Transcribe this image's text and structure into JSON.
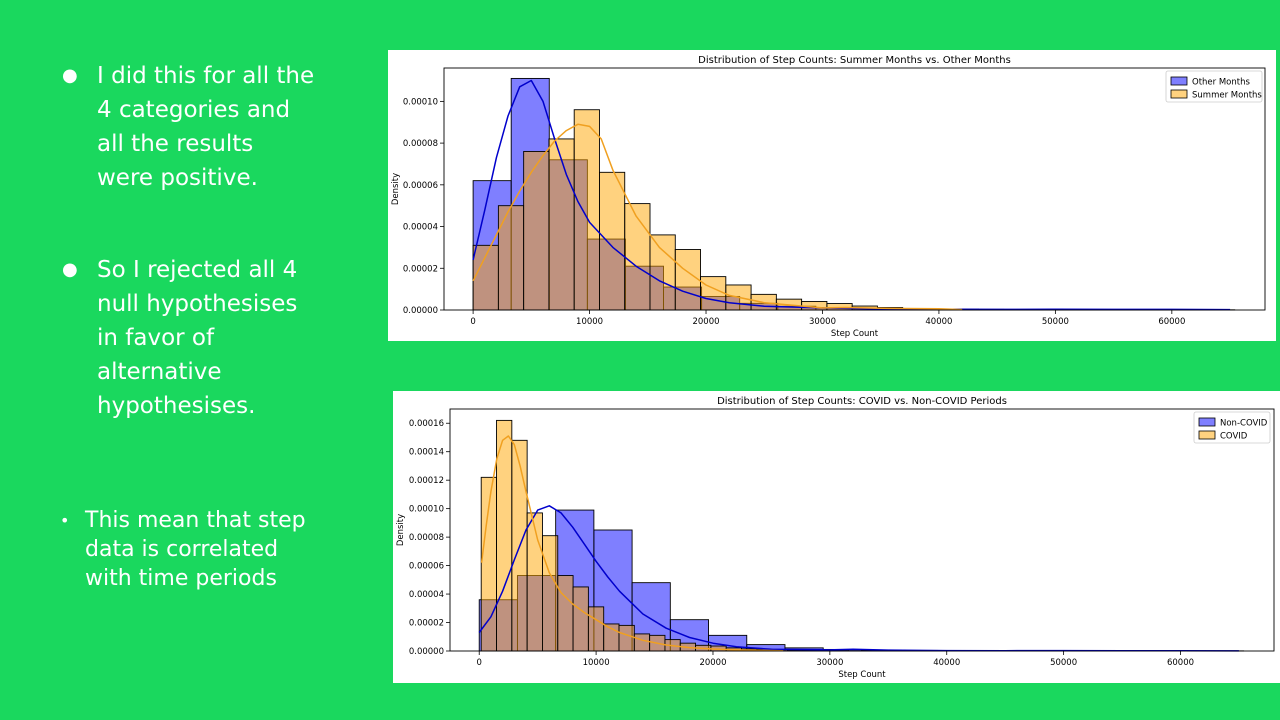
{
  "bullets": [
    {
      "text": "I did this for all the\n4 categories and\nall the results\nwere positive."
    },
    {
      "text": "So I rejected all 4\nnull hypothesises\nin favor of\nalternative\nhypothesises."
    },
    {
      "text": "This mean that step\ndata is correlated\nwith time periods"
    }
  ],
  "colors": {
    "background": "#1ad85e",
    "series_blue": "#0000ff",
    "series_orange": "#ffa500",
    "kde_blue": "#0000cc",
    "kde_orange": "#f0a020"
  },
  "chart_data": [
    {
      "type": "bar",
      "subtype": "histogram-with-kde",
      "title": "Distribution of Step Counts: Summer Months vs. Other Months",
      "xlabel": "Step Count",
      "ylabel": "Density",
      "xlim": [
        -2500,
        68000
      ],
      "ylim": [
        0,
        0.000116
      ],
      "xticks": [
        0,
        10000,
        20000,
        30000,
        40000,
        50000,
        60000
      ],
      "yticks": [
        0,
        2e-05,
        4e-05,
        6e-05,
        8e-05,
        0.0001
      ],
      "ytick_labels": [
        "0.00000",
        "0.00002",
        "0.00004",
        "0.00006",
        "0.00008",
        "0.00010"
      ],
      "grid": false,
      "legend_position": "top-right",
      "series": [
        {
          "name": "Other Months",
          "color": "#0000ff",
          "kde_color": "#0000cc",
          "bin_start": 0,
          "bin_width": 3270,
          "values": [
            6.2e-05,
            0.000111,
            7.2e-05,
            3.4e-05,
            2.1e-05,
            1.1e-05,
            6.5e-06,
            3.2e-06,
            1.8e-06,
            9e-07,
            6e-07,
            4e-07,
            3e-07,
            2e-07,
            2e-07,
            1e-07,
            1e-07,
            1e-07,
            1e-07,
            1e-07
          ],
          "kde_x": [
            0,
            1000,
            2000,
            3000,
            4000,
            5000,
            6000,
            7000,
            8000,
            9000,
            10000,
            12000,
            14000,
            16000,
            18000,
            20000,
            22000,
            25000,
            30000,
            35000,
            40000,
            45000,
            50000,
            55000,
            60000,
            65000
          ],
          "kde_y": [
            2.4e-05,
            4.8e-05,
            7.3e-05,
            9.3e-05,
            0.000107,
            0.00011,
            0.0001,
            8.2e-05,
            6.5e-05,
            5.2e-05,
            4.2e-05,
            3e-05,
            2.1e-05,
            1.4e-05,
            9e-06,
            5.5e-06,
            3.5e-06,
            1.8e-06,
            1e-06,
            5e-07,
            4e-07,
            3e-07,
            4e-07,
            3e-07,
            3e-07,
            2e-07
          ]
        },
        {
          "name": "Summer Months",
          "color": "#ffa500",
          "kde_color": "#f0a020",
          "bin_start": 0,
          "bin_width": 2170,
          "values": [
            3.1e-05,
            5e-05,
            7.6e-05,
            8.2e-05,
            9.6e-05,
            6.6e-05,
            5.1e-05,
            3.6e-05,
            2.9e-05,
            1.6e-05,
            1.2e-05,
            7.5e-06,
            5.2e-06,
            4.1e-06,
            3.1e-06,
            1.9e-06,
            1.2e-06,
            7e-07,
            5e-07,
            4e-07,
            3e-07,
            2e-07,
            2e-07,
            2e-07,
            1e-07,
            1e-07,
            1e-07,
            1e-07
          ],
          "kde_x": [
            0,
            1000,
            2000,
            3000,
            4000,
            5000,
            6000,
            7000,
            8000,
            9000,
            10000,
            11000,
            12000,
            14000,
            16000,
            18000,
            20000,
            22000,
            25000,
            30000,
            32000,
            35000,
            40000,
            42000
          ],
          "kde_y": [
            1.4e-05,
            2.5e-05,
            3.6e-05,
            4.7e-05,
            5.7e-05,
            6.6e-05,
            7.4e-05,
            8.1e-05,
            8.6e-05,
            8.9e-05,
            8.8e-05,
            8.2e-05,
            6.7e-05,
            4.5e-05,
            3e-05,
            2e-05,
            1.2e-05,
            7e-06,
            3.5e-06,
            1e-06,
            1.2e-06,
            8e-07,
            6e-07,
            2e-07
          ]
        }
      ]
    },
    {
      "type": "bar",
      "subtype": "histogram-with-kde",
      "title": "Distribution of Step Counts: COVID vs. Non-COVID Periods",
      "xlabel": "Step Count",
      "ylabel": "Density",
      "xlim": [
        -2500,
        68000
      ],
      "ylim": [
        0,
        0.00017
      ],
      "xticks": [
        0,
        10000,
        20000,
        30000,
        40000,
        50000,
        60000
      ],
      "yticks": [
        0,
        2e-05,
        4e-05,
        6e-05,
        8e-05,
        0.0001,
        0.00012,
        0.00014,
        0.00016
      ],
      "ytick_labels": [
        "0.00000",
        "0.00002",
        "0.00004",
        "0.00006",
        "0.00008",
        "0.00010",
        "0.00012",
        "0.00014",
        "0.00016"
      ],
      "grid": false,
      "legend_position": "top-right",
      "series": [
        {
          "name": "Non-COVID",
          "color": "#0000ff",
          "kde_color": "#0000cc",
          "bin_start": 0,
          "bin_width": 3270,
          "values": [
            3.6e-05,
            5.3e-05,
            9.9e-05,
            8.5e-05,
            4.8e-05,
            2.2e-05,
            1.1e-05,
            4.5e-06,
            2.2e-06,
            1.1e-06,
            6e-07,
            4e-07,
            3e-07,
            2e-07,
            2e-07,
            1e-07,
            1e-07,
            1e-07,
            1e-07,
            1e-07
          ],
          "kde_x": [
            0,
            1000,
            2000,
            3000,
            4000,
            5000,
            6000,
            7000,
            8000,
            9000,
            10000,
            11000,
            12000,
            14000,
            16000,
            18000,
            20000,
            22000,
            25000,
            30000,
            32000,
            35000,
            40000,
            45000,
            50000,
            55000,
            60000,
            65000
          ],
          "kde_y": [
            1.3e-05,
            2.4e-05,
            4.2e-05,
            6.4e-05,
            8.5e-05,
            9.9e-05,
            0.000102,
            9.7e-05,
            8.7e-05,
            7.5e-05,
            6.3e-05,
            5.2e-05,
            4.2e-05,
            2.6e-05,
            1.6e-05,
            9.5e-06,
            5.5e-06,
            3e-06,
            1.2e-06,
            8e-07,
            1.2e-06,
            6e-07,
            3e-07,
            2e-07,
            3e-07,
            2e-07,
            2e-07,
            1e-07
          ]
        },
        {
          "name": "COVID",
          "color": "#ffa500",
          "kde_color": "#f0a020",
          "bin_start": 170,
          "bin_width": 1310,
          "values": [
            0.000122,
            0.000162,
            0.000148,
            9.7e-05,
            8.1e-05,
            5.3e-05,
            4.5e-05,
            3.1e-05,
            1.9e-05,
            1.8e-05,
            1.2e-05,
            1.1e-05,
            8e-06,
            5.5e-06,
            4e-06,
            3.5e-06,
            2.2e-06,
            1.5e-06,
            1.2e-06,
            9e-07,
            7e-07,
            5e-07,
            4e-07,
            3e-07,
            2e-07,
            2e-07,
            1e-07,
            1e-07,
            1e-07,
            1e-07,
            1e-07,
            1e-07,
            1e-07,
            1e-07,
            1e-07,
            1e-07,
            1e-07,
            1e-07,
            1e-07,
            1e-07
          ],
          "kde_x": [
            200,
            600,
            1000,
            1500,
            2000,
            2500,
            3000,
            3500,
            4000,
            5000,
            6000,
            7000,
            8000,
            9000,
            10000,
            11000,
            12000,
            14000,
            16000,
            18000,
            20000,
            22000,
            24000,
            26000
          ],
          "kde_y": [
            6.2e-05,
            8.8e-05,
            0.000112,
            0.000135,
            0.000148,
            0.000151,
            0.000145,
            0.00013,
            0.000112,
            7.8e-05,
            5.5e-05,
            4.1e-05,
            3.3e-05,
            2.7e-05,
            2.2e-05,
            1.7e-05,
            1.3e-05,
            7.5e-06,
            4.2e-06,
            2.4e-06,
            1.4e-06,
            8e-07,
            4e-07,
            2e-07
          ]
        }
      ]
    }
  ]
}
